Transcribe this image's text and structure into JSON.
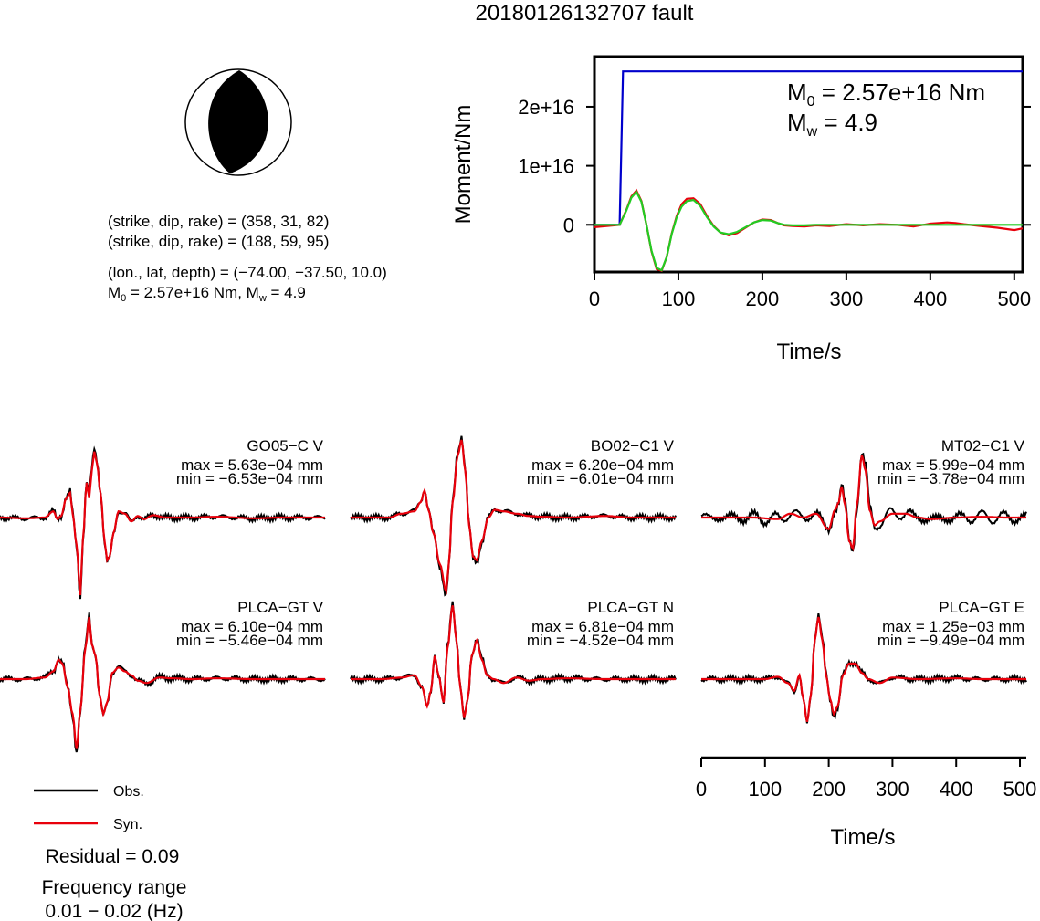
{
  "title": "20180126132707 fault",
  "source": {
    "strike_dip_rake_1": "(strike, dip, rake) = (358, 31, 82)",
    "strike_dip_rake_2": "(strike, dip, rake) = (188, 59, 95)",
    "location": "(lon., lat, depth) = (−74.00, −37.50, 10.0)",
    "magnitude_prefix": "M",
    "magnitude_sub0": "0",
    "magnitude_mid": " = 2.57e+16 Nm, M",
    "magnitude_subw": "w",
    "magnitude_suffix": " = 4.9"
  },
  "moment_panel": {
    "m0_prefix": "M",
    "m0_sub": "0",
    "m0_value": " = 2.57e+16 Nm",
    "mw_prefix": "M",
    "mw_sub": "w",
    "mw_value": " = 4.9"
  },
  "legend": {
    "obs_label": "Obs.",
    "syn_label": "Syn.",
    "obs_color": "#000000",
    "syn_color": "#e8000b"
  },
  "residual": "Residual = 0.09",
  "freq_label": "Frequency range",
  "freq_value": "0.01 − 0.02 (Hz)",
  "colors": {
    "cumulative": "#0000cc",
    "rate_red": "#e8000b",
    "rate_green": "#22cc22",
    "beachball": "#000000"
  },
  "chart_data": [
    {
      "type": "line",
      "name": "moment",
      "xlabel": "Time/s",
      "ylabel": "Moment/Nm",
      "xlim": [
        0,
        510
      ],
      "ylim": [
        -8000000000000000.0,
        2.85e+16
      ],
      "xticks": [
        0,
        100,
        200,
        300,
        400,
        500
      ],
      "xtick_labels": [
        "0",
        "100",
        "200",
        "300",
        "400",
        "500"
      ],
      "yticks": [
        0,
        1e+16,
        2e+16
      ],
      "ytick_labels": [
        "0",
        "1e+16",
        "2e+16"
      ],
      "series": [
        {
          "color": "#0000cc",
          "x": [
            0,
            30,
            34,
            510
          ],
          "y": [
            0,
            0,
            2.6e+16,
            2.6e+16
          ]
        },
        {
          "color": "#e8000b",
          "x": [
            0,
            30,
            38,
            44,
            50,
            56,
            62,
            68,
            74,
            80,
            86,
            92,
            98,
            104,
            110,
            118,
            126,
            134,
            142,
            150,
            160,
            170,
            180,
            190,
            200,
            210,
            218,
            226,
            236,
            250,
            264,
            280,
            300,
            320,
            340,
            360,
            380,
            400,
            420,
            430,
            440,
            460,
            480,
            500,
            510
          ],
          "y": [
            -400000000000000.0,
            0,
            2500000000000000.0,
            4800000000000000.0,
            5800000000000000.0,
            4000000000000000.0,
            0,
            -4500000000000000.0,
            -7500000000000000.0,
            -7800000000000000.0,
            -5500000000000000.0,
            -1500000000000000.0,
            1500000000000000.0,
            3500000000000000.0,
            4400000000000000.0,
            4500000000000000.0,
            3500000000000000.0,
            1500000000000000.0,
            -200000000000000.0,
            -1300000000000000.0,
            -1800000000000000.0,
            -1400000000000000.0,
            -500000000000000.0,
            400000000000000.0,
            900000000000000.0,
            800000000000000.0,
            300000000000000.0,
            -100000000000000.0,
            -200000000000000.0,
            -300000000000000.0,
            -100000000000000.0,
            -200000000000000.0,
            100000000000000.0,
            -100000000000000.0,
            100000000000000.0,
            0,
            -300000000000000.0,
            200000000000000.0,
            400000000000000.0,
            300000000000000.0,
            100000000000000.0,
            -200000000000000.0,
            -500000000000000.0,
            -900000000000000.0,
            -600000000000000.0
          ]
        },
        {
          "color": "#22cc22",
          "x": [
            0,
            30,
            38,
            44,
            50,
            56,
            62,
            68,
            74,
            80,
            86,
            92,
            98,
            104,
            110,
            118,
            126,
            134,
            142,
            150,
            160,
            170,
            180,
            190,
            200,
            210,
            218,
            226,
            236,
            250,
            264,
            280,
            300,
            340,
            400,
            510
          ],
          "y": [
            0,
            0,
            2400000000000000.0,
            4600000000000000.0,
            5600000000000000.0,
            3900000000000000.0,
            0,
            -4400000000000000.0,
            -7300000000000000.0,
            -7700000000000000.0,
            -5500000000000000.0,
            -1600000000000000.0,
            1300000000000000.0,
            3100000000000000.0,
            4000000000000000.0,
            4200000000000000.0,
            3200000000000000.0,
            1300000000000000.0,
            -300000000000000.0,
            -1300000000000000.0,
            -1600000000000000.0,
            -1200000000000000.0,
            -400000000000000.0,
            400000000000000.0,
            800000000000000.0,
            700000000000000.0,
            300000000000000.0,
            0,
            -100000000000000.0,
            -100000000000000.0,
            0,
            0,
            0,
            0,
            0,
            0
          ]
        }
      ]
    },
    {
      "type": "line",
      "name": "waveforms",
      "xlabel": "Time/s",
      "xlim": [
        0,
        510
      ],
      "xticks": [
        0,
        100,
        200,
        300,
        400,
        500
      ],
      "xtick_labels": [
        "0",
        "100",
        "200",
        "300",
        "400",
        "500"
      ],
      "traces": [
        {
          "station": "GO05−C V",
          "max": "max = 5.63e−04 mm",
          "min": "min = −6.53e−04 mm",
          "amp": 6.53,
          "pts": [
            [
              0,
              0
            ],
            [
              40,
              -0.01
            ],
            [
              70,
              0
            ],
            [
              84,
              0.08
            ],
            [
              90,
              -0.02
            ],
            [
              96,
              0.02
            ],
            [
              104,
              0.25
            ],
            [
              110,
              0.32
            ],
            [
              114,
              0.05
            ],
            [
              120,
              -0.35
            ],
            [
              126,
              -1.0
            ],
            [
              130,
              -0.3
            ],
            [
              136,
              0.45
            ],
            [
              140,
              0.25
            ],
            [
              144,
              0.6
            ],
            [
              148,
              0.85
            ],
            [
              152,
              0.7
            ],
            [
              158,
              0.3
            ],
            [
              164,
              -0.3
            ],
            [
              168,
              -0.55
            ],
            [
              172,
              -0.5
            ],
            [
              178,
              -0.2
            ],
            [
              186,
              0.08
            ],
            [
              196,
              0.05
            ],
            [
              206,
              -0.05
            ],
            [
              216,
              0.02
            ],
            [
              226,
              -0.02
            ],
            [
              240,
              0.03
            ],
            [
              260,
              0
            ],
            [
              300,
              0
            ],
            [
              340,
              0.01
            ],
            [
              400,
              -0.01
            ],
            [
              440,
              0
            ],
            [
              510,
              0
            ]
          ]
        },
        {
          "station": "BO02−C1 V",
          "max": "max = 6.20e−04 mm",
          "min": "min = −6.01e−04 mm",
          "amp": 6.2,
          "pts": [
            [
              0,
              0
            ],
            [
              60,
              0
            ],
            [
              80,
              0.05
            ],
            [
              100,
              0.08
            ],
            [
              110,
              0.2
            ],
            [
              116,
              0.35
            ],
            [
              122,
              0.1
            ],
            [
              130,
              -0.2
            ],
            [
              140,
              -0.6
            ],
            [
              150,
              -0.95
            ],
            [
              154,
              -0.6
            ],
            [
              160,
              0.2
            ],
            [
              168,
              0.8
            ],
            [
              174,
              1.0
            ],
            [
              180,
              0.6
            ],
            [
              186,
              -0.1
            ],
            [
              192,
              -0.5
            ],
            [
              198,
              -0.55
            ],
            [
              206,
              -0.3
            ],
            [
              216,
              0
            ],
            [
              226,
              0.1
            ],
            [
              240,
              0.08
            ],
            [
              260,
              0.05
            ],
            [
              280,
              0.02
            ],
            [
              300,
              0.01
            ],
            [
              340,
              0
            ],
            [
              400,
              0.02
            ],
            [
              440,
              0
            ],
            [
              510,
              0
            ]
          ]
        },
        {
          "station": "MT02−C1 V",
          "max": "max = 5.99e−04 mm",
          "min": "min = −3.78e−04 mm",
          "amp": 5.99,
          "pts": [
            [
              0,
              0
            ],
            [
              60,
              0
            ],
            [
              80,
              0
            ],
            [
              120,
              -0.02
            ],
            [
              140,
              0.05
            ],
            [
              160,
              0
            ],
            [
              180,
              0.05
            ],
            [
              200,
              -0.15
            ],
            [
              210,
              0.1
            ],
            [
              216,
              0.2
            ],
            [
              220,
              0.4
            ],
            [
              226,
              0.15
            ],
            [
              232,
              -0.3
            ],
            [
              238,
              -0.4
            ],
            [
              244,
              0.15
            ],
            [
              252,
              0.8
            ],
            [
              258,
              0.6
            ],
            [
              264,
              0.1
            ],
            [
              272,
              -0.1
            ],
            [
              280,
              -0.05
            ],
            [
              300,
              0.05
            ],
            [
              320,
              0.05
            ],
            [
              340,
              0
            ],
            [
              360,
              -0.02
            ],
            [
              400,
              0
            ],
            [
              440,
              0.01
            ],
            [
              480,
              0
            ],
            [
              510,
              0
            ]
          ]
        },
        {
          "station": "PLCA−GT V",
          "max": "max = 6.10e−04 mm",
          "min": "min = −5.46e−04 mm",
          "amp": 6.1,
          "pts": [
            [
              0,
              0
            ],
            [
              40,
              0
            ],
            [
              70,
              0.02
            ],
            [
              84,
              0.1
            ],
            [
              92,
              0.25
            ],
            [
              98,
              0.2
            ],
            [
              106,
              -0.1
            ],
            [
              114,
              -0.45
            ],
            [
              120,
              -0.9
            ],
            [
              126,
              -0.4
            ],
            [
              134,
              0.4
            ],
            [
              140,
              0.8
            ],
            [
              144,
              0.45
            ],
            [
              150,
              0.3
            ],
            [
              156,
              -0.2
            ],
            [
              162,
              -0.45
            ],
            [
              168,
              -0.3
            ],
            [
              176,
              0.08
            ],
            [
              186,
              0.15
            ],
            [
              196,
              0.1
            ],
            [
              206,
              0.05
            ],
            [
              216,
              -0.02
            ],
            [
              230,
              -0.05
            ],
            [
              250,
              0.02
            ],
            [
              270,
              0.01
            ],
            [
              300,
              0
            ],
            [
              340,
              0.01
            ],
            [
              400,
              0
            ],
            [
              440,
              0
            ],
            [
              510,
              0
            ]
          ]
        },
        {
          "station": "PLCA−GT N",
          "max": "max = 6.81e−04 mm",
          "min": "min = −4.52e−04 mm",
          "amp": 6.81,
          "pts": [
            [
              0,
              0
            ],
            [
              50,
              0
            ],
            [
              80,
              0.02
            ],
            [
              100,
              0.05
            ],
            [
              112,
              -0.1
            ],
            [
              120,
              -0.35
            ],
            [
              126,
              -0.15
            ],
            [
              132,
              0.3
            ],
            [
              138,
              0.05
            ],
            [
              146,
              -0.3
            ],
            [
              152,
              0.4
            ],
            [
              160,
              0.95
            ],
            [
              166,
              0.5
            ],
            [
              172,
              -0.1
            ],
            [
              178,
              -0.5
            ],
            [
              184,
              -0.25
            ],
            [
              190,
              0.3
            ],
            [
              198,
              0.5
            ],
            [
              206,
              0.25
            ],
            [
              214,
              0.05
            ],
            [
              224,
              0.0
            ],
            [
              240,
              -0.05
            ],
            [
              260,
              0.02
            ],
            [
              280,
              -0.02
            ],
            [
              300,
              0
            ],
            [
              340,
              0.01
            ],
            [
              400,
              0
            ],
            [
              440,
              0
            ],
            [
              510,
              0
            ]
          ]
        },
        {
          "station": "PLCA−GT E",
          "max": "max = 1.25e−03 mm",
          "min": "min = −9.49e−04 mm",
          "amp": 12.5,
          "pts": [
            [
              0,
              0
            ],
            [
              60,
              0
            ],
            [
              100,
              0
            ],
            [
              120,
              0.03
            ],
            [
              136,
              -0.05
            ],
            [
              146,
              -0.15
            ],
            [
              154,
              0.05
            ],
            [
              160,
              -0.25
            ],
            [
              166,
              -0.55
            ],
            [
              172,
              -0.2
            ],
            [
              178,
              0.5
            ],
            [
              184,
              0.8
            ],
            [
              190,
              0.5
            ],
            [
              196,
              0.05
            ],
            [
              202,
              -0.25
            ],
            [
              208,
              -0.45
            ],
            [
              214,
              -0.35
            ],
            [
              222,
              0.05
            ],
            [
              232,
              0.2
            ],
            [
              242,
              0.2
            ],
            [
              252,
              0.08
            ],
            [
              262,
              0
            ],
            [
              280,
              -0.05
            ],
            [
              300,
              0.02
            ],
            [
              340,
              0
            ],
            [
              400,
              0.01
            ],
            [
              440,
              0
            ],
            [
              480,
              0
            ],
            [
              510,
              0
            ]
          ]
        }
      ]
    }
  ]
}
